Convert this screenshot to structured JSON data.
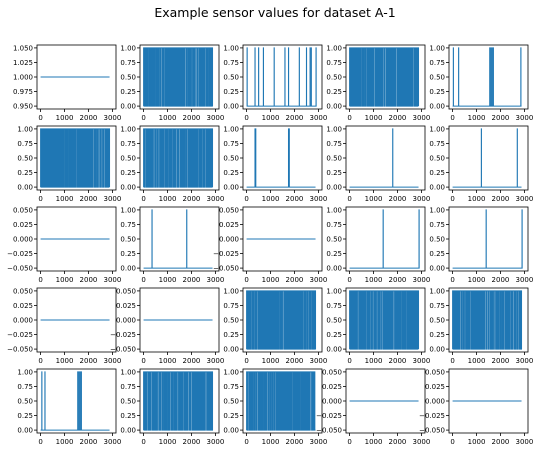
{
  "figure": {
    "title": "Example sensor values for dataset A-1"
  },
  "styles": {
    "line_color": "#1f77b4",
    "axis_color": "#000000",
    "background": "#ffffff"
  },
  "chart_data": [
    {
      "type": "line",
      "panel": 1,
      "x_range": [
        0,
        3000
      ],
      "x_ticks": [
        0,
        1000,
        2000,
        3000
      ],
      "y_range": [
        0.945,
        1.055
      ],
      "y_ticks": [
        0.95,
        0.975,
        1.0,
        1.025,
        1.05
      ],
      "y_tick_labels": [
        "0.950",
        "0.975",
        "1.000",
        "1.025",
        "1.050"
      ],
      "pattern": "constant",
      "value": 1.0,
      "spikes": []
    },
    {
      "type": "line",
      "panel": 2,
      "x_range": [
        0,
        3000
      ],
      "x_ticks": [
        0,
        1000,
        2000,
        3000
      ],
      "y_range": [
        -0.05,
        1.05
      ],
      "y_ticks": [
        0,
        0.25,
        0.5,
        0.75,
        1.0
      ],
      "y_tick_labels": [
        "0.00",
        "0.25",
        "0.50",
        "0.75",
        "1.00"
      ],
      "pattern": "dense_binary",
      "value": 0,
      "spikes": [],
      "seed": 11
    },
    {
      "type": "line",
      "panel": 3,
      "x_range": [
        0,
        3000
      ],
      "x_ticks": [
        0,
        1000,
        2000,
        3000
      ],
      "y_range": [
        -0.05,
        1.05
      ],
      "y_ticks": [
        0,
        0.25,
        0.5,
        0.75,
        1.0
      ],
      "y_tick_labels": [
        "0.00",
        "0.25",
        "0.50",
        "0.75",
        "1.00"
      ],
      "pattern": "spikes",
      "value": 0,
      "spikes": [
        20,
        350,
        500,
        700,
        1150,
        1600,
        1750,
        2200,
        2500,
        2650,
        2700,
        2900
      ]
    },
    {
      "type": "line",
      "panel": 4,
      "x_range": [
        0,
        3000
      ],
      "x_ticks": [
        0,
        1000,
        2000,
        3000
      ],
      "y_range": [
        -0.05,
        1.05
      ],
      "y_ticks": [
        0,
        0.25,
        0.5,
        0.75,
        1.0
      ],
      "y_tick_labels": [
        "0.00",
        "0.25",
        "0.50",
        "0.75",
        "1.00"
      ],
      "pattern": "dense_binary",
      "value": 0,
      "spikes": [],
      "seed": 23
    },
    {
      "type": "line",
      "panel": 5,
      "x_range": [
        0,
        3000
      ],
      "x_ticks": [
        0,
        1000,
        2000,
        3000
      ],
      "y_range": [
        -0.05,
        1.05
      ],
      "y_ticks": [
        0,
        0.25,
        0.5,
        0.75,
        1.0
      ],
      "y_tick_labels": [
        "0.00",
        "0.25",
        "0.50",
        "0.75",
        "1.00"
      ],
      "pattern": "spikes",
      "value": 0,
      "spikes": [
        30,
        250,
        1550,
        1600,
        1650,
        1700,
        2850
      ]
    },
    {
      "type": "line",
      "panel": 6,
      "x_range": [
        0,
        3000
      ],
      "x_ticks": [
        0,
        1000,
        2000,
        3000
      ],
      "y_range": [
        -0.05,
        1.05
      ],
      "y_ticks": [
        0,
        0.25,
        0.5,
        0.75,
        1.0
      ],
      "y_tick_labels": [
        "0.00",
        "0.25",
        "0.50",
        "0.75",
        "1.00"
      ],
      "pattern": "dense_binary",
      "value": 0,
      "spikes": [],
      "seed": 37
    },
    {
      "type": "line",
      "panel": 7,
      "x_range": [
        0,
        3000
      ],
      "x_ticks": [
        0,
        1000,
        2000,
        3000
      ],
      "y_range": [
        -0.05,
        1.05
      ],
      "y_ticks": [
        0,
        0.25,
        0.5,
        0.75,
        1.0
      ],
      "y_tick_labels": [
        "0.00",
        "0.25",
        "0.50",
        "0.75",
        "1.00"
      ],
      "pattern": "dense_binary",
      "value": 0,
      "spikes": [],
      "seed": 41
    },
    {
      "type": "line",
      "panel": 8,
      "x_range": [
        0,
        3000
      ],
      "x_ticks": [
        0,
        1000,
        2000,
        3000
      ],
      "y_range": [
        -0.05,
        1.05
      ],
      "y_ticks": [
        0,
        0.25,
        0.5,
        0.75,
        1.0
      ],
      "y_tick_labels": [
        "0.00",
        "0.25",
        "0.50",
        "0.75",
        "1.00"
      ],
      "pattern": "spikes",
      "value": 0,
      "spikes": [
        350,
        380,
        1750,
        1780
      ]
    },
    {
      "type": "line",
      "panel": 9,
      "x_range": [
        0,
        3000
      ],
      "x_ticks": [
        0,
        1000,
        2000,
        3000
      ],
      "y_range": [
        -0.05,
        1.05
      ],
      "y_ticks": [
        0,
        0.25,
        0.5,
        0.75,
        1.0
      ],
      "y_tick_labels": [
        "0.00",
        "0.25",
        "0.50",
        "0.75",
        "1.00"
      ],
      "pattern": "spikes",
      "value": 0,
      "spikes": [
        1800
      ]
    },
    {
      "type": "line",
      "panel": 10,
      "x_range": [
        0,
        3000
      ],
      "x_ticks": [
        0,
        1000,
        2000,
        3000
      ],
      "y_range": [
        -0.05,
        1.05
      ],
      "y_ticks": [
        0,
        0.25,
        0.5,
        0.75,
        1.0
      ],
      "y_tick_labels": [
        "0.00",
        "0.25",
        "0.50",
        "0.75",
        "1.00"
      ],
      "pattern": "spikes",
      "value": 0,
      "spikes": [
        1200,
        2700
      ]
    },
    {
      "type": "line",
      "panel": 11,
      "x_range": [
        0,
        3000
      ],
      "x_ticks": [
        0,
        1000,
        2000,
        3000
      ],
      "y_range": [
        -0.055,
        0.055
      ],
      "y_ticks": [
        -0.05,
        -0.025,
        0,
        0.025,
        0.05
      ],
      "y_tick_labels": [
        "−0.050",
        "−0.025",
        "0.000",
        "0.025",
        "0.050"
      ],
      "pattern": "constant",
      "value": 0,
      "spikes": []
    },
    {
      "type": "line",
      "panel": 12,
      "x_range": [
        0,
        3000
      ],
      "x_ticks": [
        0,
        1000,
        2000,
        3000
      ],
      "y_range": [
        -0.05,
        1.05
      ],
      "y_ticks": [
        0,
        0.25,
        0.5,
        0.75,
        1.0
      ],
      "y_tick_labels": [
        "0.00",
        "0.25",
        "0.50",
        "0.75",
        "1.00"
      ],
      "pattern": "spikes",
      "value": 0,
      "spikes": [
        350,
        1800
      ]
    },
    {
      "type": "line",
      "panel": 13,
      "x_range": [
        0,
        3000
      ],
      "x_ticks": [
        0,
        1000,
        2000,
        3000
      ],
      "y_range": [
        -0.055,
        0.055
      ],
      "y_ticks": [
        -0.05,
        -0.025,
        0,
        0.025,
        0.05
      ],
      "y_tick_labels": [
        "−0.050",
        "−0.025",
        "0.000",
        "0.025",
        "0.050"
      ],
      "pattern": "constant",
      "value": 0,
      "spikes": []
    },
    {
      "type": "line",
      "panel": 14,
      "x_range": [
        0,
        3000
      ],
      "x_ticks": [
        0,
        1000,
        2000,
        3000
      ],
      "y_range": [
        -0.05,
        1.05
      ],
      "y_ticks": [
        0,
        0.25,
        0.5,
        0.75,
        1.0
      ],
      "y_tick_labels": [
        "0.00",
        "0.25",
        "0.50",
        "0.75",
        "1.00"
      ],
      "pattern": "spikes",
      "value": 0,
      "spikes": [
        1400,
        2900
      ]
    },
    {
      "type": "line",
      "panel": 15,
      "x_range": [
        0,
        3000
      ],
      "x_ticks": [
        0,
        1000,
        2000,
        3000
      ],
      "y_range": [
        -0.05,
        1.05
      ],
      "y_ticks": [
        0,
        0.25,
        0.5,
        0.75,
        1.0
      ],
      "y_tick_labels": [
        "0.00",
        "0.25",
        "0.50",
        "0.75",
        "1.00"
      ],
      "pattern": "spikes",
      "value": 0,
      "spikes": [
        1400,
        2900
      ]
    },
    {
      "type": "line",
      "panel": 16,
      "x_range": [
        0,
        3000
      ],
      "x_ticks": [
        0,
        1000,
        2000,
        3000
      ],
      "y_range": [
        -0.055,
        0.055
      ],
      "y_ticks": [
        -0.05,
        -0.025,
        0,
        0.025,
        0.05
      ],
      "y_tick_labels": [
        "−0.050",
        "−0.025",
        "0.000",
        "0.025",
        "0.050"
      ],
      "pattern": "constant",
      "value": 0,
      "spikes": []
    },
    {
      "type": "line",
      "panel": 17,
      "x_range": [
        0,
        3000
      ],
      "x_ticks": [
        0,
        1000,
        2000,
        3000
      ],
      "y_range": [
        -0.055,
        0.055
      ],
      "y_ticks": [
        -0.05,
        -0.025,
        0,
        0.025,
        0.05
      ],
      "y_tick_labels": [
        "−0.050",
        "−0.025",
        "0.000",
        "0.025",
        "0.050"
      ],
      "pattern": "constant",
      "value": 0,
      "spikes": []
    },
    {
      "type": "line",
      "panel": 18,
      "x_range": [
        0,
        3000
      ],
      "x_ticks": [
        0,
        1000,
        2000,
        3000
      ],
      "y_range": [
        -0.05,
        1.05
      ],
      "y_ticks": [
        0,
        0.25,
        0.5,
        0.75,
        1.0
      ],
      "y_tick_labels": [
        "0.00",
        "0.25",
        "0.50",
        "0.75",
        "1.00"
      ],
      "pattern": "dense_binary",
      "value": 0,
      "spikes": [],
      "seed": 53
    },
    {
      "type": "line",
      "panel": 19,
      "x_range": [
        0,
        3000
      ],
      "x_ticks": [
        0,
        1000,
        2000,
        3000
      ],
      "y_range": [
        -0.05,
        1.05
      ],
      "y_ticks": [
        0,
        0.25,
        0.5,
        0.75,
        1.0
      ],
      "y_tick_labels": [
        "0.00",
        "0.25",
        "0.50",
        "0.75",
        "1.00"
      ],
      "pattern": "dense_binary",
      "value": 0,
      "spikes": [],
      "seed": 61
    },
    {
      "type": "line",
      "panel": 20,
      "x_range": [
        0,
        3000
      ],
      "x_ticks": [
        0,
        1000,
        2000,
        3000
      ],
      "y_range": [
        -0.05,
        1.05
      ],
      "y_ticks": [
        0,
        0.25,
        0.5,
        0.75,
        1.0
      ],
      "y_tick_labels": [
        "0.00",
        "0.25",
        "0.50",
        "0.75",
        "1.00"
      ],
      "pattern": "dense_binary",
      "value": 0,
      "spikes": [],
      "seed": 67
    },
    {
      "type": "line",
      "panel": 21,
      "x_range": [
        0,
        3000
      ],
      "x_ticks": [
        0,
        1000,
        2000,
        3000
      ],
      "y_range": [
        -0.05,
        1.05
      ],
      "y_ticks": [
        0,
        0.25,
        0.5,
        0.75,
        1.0
      ],
      "y_tick_labels": [
        "0.00",
        "0.25",
        "0.50",
        "0.75",
        "1.00"
      ],
      "pattern": "spikes",
      "value": 0,
      "spikes": [
        50,
        180,
        1550,
        1600,
        1650,
        1700
      ]
    },
    {
      "type": "line",
      "panel": 22,
      "x_range": [
        0,
        3000
      ],
      "x_ticks": [
        0,
        1000,
        2000,
        3000
      ],
      "y_range": [
        -0.05,
        1.05
      ],
      "y_ticks": [
        0,
        0.25,
        0.5,
        0.75,
        1.0
      ],
      "y_tick_labels": [
        "0.00",
        "0.25",
        "0.50",
        "0.75",
        "1.00"
      ],
      "pattern": "dense_binary",
      "value": 0,
      "spikes": [],
      "seed": 71
    },
    {
      "type": "line",
      "panel": 23,
      "x_range": [
        0,
        3000
      ],
      "x_ticks": [
        0,
        1000,
        2000,
        3000
      ],
      "y_range": [
        -0.05,
        1.05
      ],
      "y_ticks": [
        0,
        0.25,
        0.5,
        0.75,
        1.0
      ],
      "y_tick_labels": [
        "0.00",
        "0.25",
        "0.50",
        "0.75",
        "1.00"
      ],
      "pattern": "dense_binary",
      "value": 0,
      "spikes": [],
      "seed": 79
    },
    {
      "type": "line",
      "panel": 24,
      "x_range": [
        0,
        3000
      ],
      "x_ticks": [
        0,
        1000,
        2000,
        3000
      ],
      "y_range": [
        -0.055,
        0.055
      ],
      "y_ticks": [
        -0.05,
        -0.025,
        0,
        0.025,
        0.05
      ],
      "y_tick_labels": [
        "−0.050",
        "−0.025",
        "0.000",
        "0.025",
        "0.050"
      ],
      "pattern": "constant",
      "value": 0,
      "spikes": []
    },
    {
      "type": "line",
      "panel": 25,
      "x_range": [
        0,
        3000
      ],
      "x_ticks": [
        0,
        1000,
        2000,
        3000
      ],
      "y_range": [
        -0.055,
        0.055
      ],
      "y_ticks": [
        -0.05,
        -0.025,
        0,
        0.025,
        0.05
      ],
      "y_tick_labels": [
        "−0.050",
        "−0.025",
        "0.000",
        "0.025",
        "0.050"
      ],
      "pattern": "constant",
      "value": 0,
      "spikes": []
    }
  ]
}
